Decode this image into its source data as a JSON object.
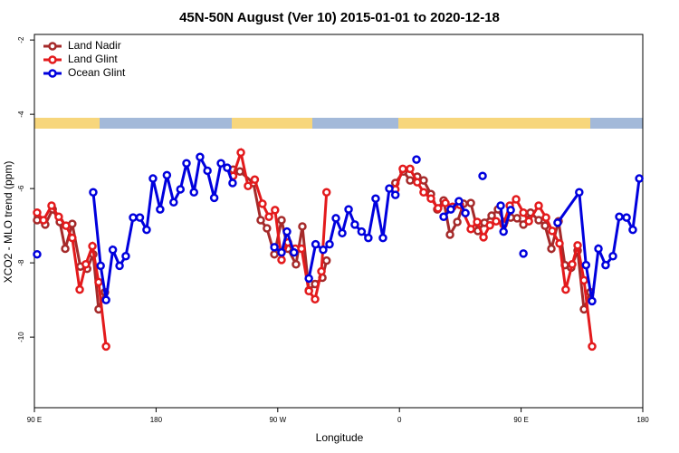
{
  "chart_data": {
    "type": "line",
    "title": "45N-50N August (Ver 10)   2015-01-01 to 2020-12-18",
    "x_label": "Longitude",
    "y_label": "XCO2 - MLO trend (ppm)",
    "xlim": [
      90,
      540
    ],
    "ylim": [
      -11.9,
      -1.85
    ],
    "xticks": [
      {
        "value": 90,
        "label": "90 E"
      },
      {
        "value": 180,
        "label": "180"
      },
      {
        "value": 270,
        "label": "90 W"
      },
      {
        "value": 360,
        "label": "0"
      },
      {
        "value": 450,
        "label": "90 E"
      },
      {
        "value": 540,
        "label": "180"
      }
    ],
    "yticks": [
      -2,
      -4,
      -6,
      -8,
      -10
    ],
    "legend": "top-left",
    "series": [
      {
        "name": "Land Nadir",
        "color": "#a52a2a",
        "x": [
          92,
          98,
          103.5,
          108.8,
          112.8,
          118,
          124,
          129,
          133.5,
          137.5,
          142.2,
          null,
          237,
          242,
          252,
          257.4,
          262,
          267.5,
          272.8,
          277.5,
          283.5,
          288.2,
          293,
          297.6,
          303,
          306.1,
          null,
          357,
          363,
          367.9,
          373.2,
          377.9,
          383.3,
          388,
          392.7,
          397.4,
          402.8,
          407.5,
          412.8,
          418,
          422.9,
          428.2,
          432.9,
          437.6,
          442.3,
          447,
          451.7,
          457,
          463,
          467.7,
          472.4,
          477.7,
          482.4,
          487,
          491.8,
          496.5,
          501.2
        ],
        "values": [
          -6.85,
          -6.97,
          -6.56,
          -6.9,
          -7.62,
          -6.95,
          -8.1,
          -8.16,
          -7.77,
          -9.25,
          -8.79,
          null,
          -5.49,
          -5.54,
          -5.85,
          -6.85,
          -7.07,
          -7.77,
          -6.85,
          -7.62,
          -8.04,
          -7.02,
          -8.74,
          -8.57,
          -8.4,
          -7.94,
          null,
          -5.85,
          -5.54,
          -5.78,
          -5.68,
          -5.78,
          -6.15,
          -6.56,
          -6.32,
          -7.24,
          -6.9,
          -6.41,
          -6.39,
          -7.14,
          -6.92,
          -6.73,
          -6.56,
          -6.9,
          -6.78,
          -6.8,
          -6.97,
          -6.65,
          -6.85,
          -7.0,
          -7.62,
          -6.88,
          -8.06,
          -8.13,
          -7.67,
          -9.25,
          -8.79
        ]
      },
      {
        "name": "Land Glint",
        "color": "#e31a1c",
        "x": [
          92,
          96.7,
          102.7,
          108,
          113.4,
          118,
          123.5,
          128,
          132.9,
          137.5,
          143,
          null,
          237,
          242.7,
          248,
          253,
          258.7,
          263.5,
          268,
          272.8,
          277.5,
          283,
          287.6,
          293,
          297.6,
          302.3,
          306.1,
          null,
          357,
          362.5,
          367.9,
          373.2,
          377.9,
          383.3,
          388.6,
          394,
          399.3,
          404.7,
          412.8,
          417.5,
          422.2,
          426.9,
          431.5,
          437,
          441.6,
          446.3,
          451.7,
          455.7,
          463,
          468.4,
          473,
          478.4,
          483,
          487.8,
          491.8,
          496.5,
          502.5
        ],
        "values": [
          -6.65,
          -6.85,
          -6.46,
          -6.76,
          -7.0,
          -7.33,
          -8.72,
          -8.04,
          -7.55,
          -8.52,
          -10.25,
          null,
          -5.66,
          -5.03,
          -5.93,
          -5.76,
          -6.41,
          -6.76,
          -6.58,
          -7.92,
          -7.45,
          -7.62,
          -7.62,
          -8.76,
          -8.98,
          -8.23,
          -6.1,
          null,
          -6.02,
          -5.47,
          -5.47,
          -5.83,
          -6.1,
          -6.27,
          -6.53,
          -6.39,
          -6.49,
          -6.44,
          -7.09,
          -6.9,
          -7.31,
          -6.99,
          -6.88,
          -6.97,
          -6.46,
          -6.29,
          -6.65,
          -6.88,
          -6.46,
          -6.78,
          -7.14,
          -7.48,
          -8.72,
          -8.04,
          -7.53,
          -8.47,
          -10.25
        ]
      },
      {
        "name": "Ocean Glint",
        "color": "#0000dd",
        "x": [
          92,
          null,
          133.5,
          139,
          143,
          148,
          153,
          157.6,
          163,
          168,
          173,
          177.7,
          183,
          188,
          193,
          198,
          202.5,
          208,
          212.5,
          218,
          223,
          228,
          232.6,
          236.6,
          null,
          267.5,
          272.8,
          276.8,
          282,
          null,
          293,
          298,
          303.6,
          308.3,
          313,
          317.7,
          322.4,
          327,
          332,
          337,
          342.4,
          347.8,
          352.5,
          357,
          null,
          372.6,
          null,
          392.7,
          398,
          404,
          408.8,
          null,
          421.5,
          null,
          434.9,
          437,
          442.3,
          null,
          451.7,
          null,
          477,
          493,
          498,
          502.5,
          507.2,
          512.5,
          517.9,
          522.6,
          528,
          532.6,
          537.4
        ],
        "values": [
          -7.77,
          null,
          -6.1,
          -8.08,
          -9.0,
          -7.65,
          -8.08,
          -7.82,
          -6.78,
          -6.78,
          -7.11,
          -5.73,
          -6.56,
          -5.64,
          -6.37,
          -6.02,
          -5.32,
          -6.1,
          -5.15,
          -5.52,
          -6.25,
          -5.32,
          -5.44,
          -5.85,
          null,
          -7.58,
          -7.72,
          -7.16,
          -7.72,
          null,
          -8.42,
          -7.5,
          -7.65,
          -7.5,
          -6.8,
          -7.2,
          -6.56,
          -6.97,
          -7.16,
          -7.33,
          -6.27,
          -7.33,
          -6.0,
          -6.17,
          null,
          -5.22,
          null,
          -6.76,
          -6.56,
          -6.34,
          -6.66,
          null,
          -5.66,
          null,
          -6.46,
          -7.16,
          -6.58,
          null,
          -7.75,
          null,
          -6.92,
          -6.1,
          -8.06,
          -9.03,
          -7.62,
          -8.06,
          -7.82,
          -6.76,
          -6.78,
          -7.11,
          -5.73
        ]
      }
    ]
  }
}
